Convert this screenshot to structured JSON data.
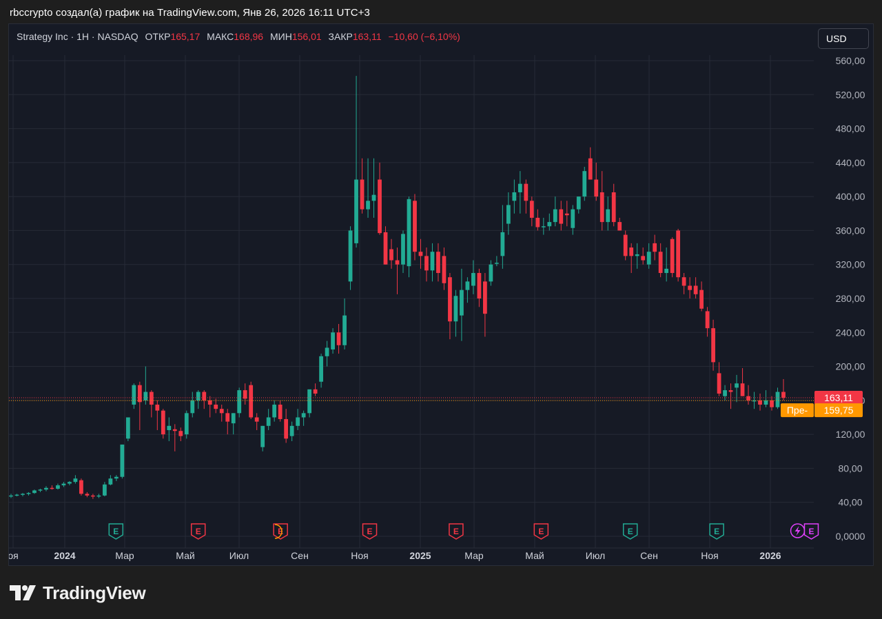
{
  "caption": "rbccrypto создал(а) график на TradingView.com, Янв 26, 2026 16:11 UTC+3",
  "legend": {
    "symbol": "Strategy Inc · 1H · NASDAQ",
    "open_label": "ОТКР",
    "open_value": "165,17",
    "high_label": "МАКС",
    "high_value": "168,96",
    "low_label": "МИН",
    "low_value": "156,01",
    "close_label": "ЗАКР",
    "close_value": "163,11",
    "change": "−10,60 (−6,10%)"
  },
  "currency_button": "USD",
  "last_price_label": "163,11",
  "premarket_tag": "Пре-",
  "premarket_price": "159,75",
  "logo_text": "TradingView",
  "colors": {
    "up": "#22ab94",
    "down": "#f23645",
    "premarket": "#ff9800",
    "background": "#161a25"
  },
  "chart_data": {
    "type": "candlestick",
    "ylim": [
      0,
      560
    ],
    "y_ticks": [
      "0,0000",
      "40,00",
      "80,00",
      "120,00",
      "160,00",
      "200,00",
      "240,00",
      "280,00",
      "320,00",
      "360,00",
      "400,00",
      "440,00",
      "480,00",
      "520,00",
      "560,00"
    ],
    "x_ticks": [
      {
        "label": "оя",
        "date": "2023-11",
        "bold": false
      },
      {
        "label": "2024",
        "date": "2024-01",
        "bold": true
      },
      {
        "label": "Мар",
        "date": "2024-03",
        "bold": false
      },
      {
        "label": "Май",
        "date": "2024-05",
        "bold": false
      },
      {
        "label": "Июл",
        "date": "2024-07",
        "bold": false
      },
      {
        "label": "Сен",
        "date": "2024-09",
        "bold": false
      },
      {
        "label": "Ноя",
        "date": "2024-11",
        "bold": false
      },
      {
        "label": "2025",
        "date": "2025-01",
        "bold": true
      },
      {
        "label": "Мар",
        "date": "2025-03",
        "bold": false
      },
      {
        "label": "Май",
        "date": "2025-05",
        "bold": false
      },
      {
        "label": "Июл",
        "date": "2025-07",
        "bold": false
      },
      {
        "label": "Сен",
        "date": "2025-09",
        "bold": false
      },
      {
        "label": "Ноя",
        "date": "2025-11",
        "bold": false
      },
      {
        "label": "2026",
        "date": "2026-01",
        "bold": true
      }
    ],
    "candles": [
      [
        47,
        50,
        45,
        48
      ],
      [
        48,
        50,
        47,
        49
      ],
      [
        49,
        51,
        47,
        50
      ],
      [
        50,
        52,
        48,
        51
      ],
      [
        51,
        55,
        50,
        54
      ],
      [
        54,
        56,
        52,
        55
      ],
      [
        55,
        59,
        53,
        57
      ],
      [
        57,
        60,
        55,
        56
      ],
      [
        56,
        62,
        55,
        60
      ],
      [
        60,
        64,
        58,
        62
      ],
      [
        62,
        65,
        60,
        64
      ],
      [
        64,
        72,
        62,
        68
      ],
      [
        66,
        68,
        48,
        50
      ],
      [
        50,
        52,
        46,
        48
      ],
      [
        48,
        50,
        44,
        47
      ],
      [
        47,
        50,
        45,
        48
      ],
      [
        48,
        64,
        47,
        61
      ],
      [
        61,
        72,
        60,
        68
      ],
      [
        68,
        72,
        65,
        70
      ],
      [
        70,
        108,
        68,
        108
      ],
      [
        115,
        140,
        112,
        140
      ],
      [
        155,
        180,
        150,
        178
      ],
      [
        178,
        182,
        125,
        158
      ],
      [
        160,
        200,
        155,
        170
      ],
      [
        170,
        172,
        140,
        155
      ],
      [
        155,
        160,
        125,
        148
      ],
      [
        148,
        150,
        115,
        120
      ],
      [
        125,
        140,
        112,
        130
      ],
      [
        126,
        132,
        100,
        124
      ],
      [
        124,
        128,
        112,
        118
      ],
      [
        120,
        148,
        115,
        145
      ],
      [
        145,
        170,
        140,
        160
      ],
      [
        160,
        172,
        150,
        170
      ],
      [
        170,
        172,
        150,
        160
      ],
      [
        160,
        165,
        140,
        155
      ],
      [
        155,
        162,
        145,
        150
      ],
      [
        150,
        155,
        135,
        145
      ],
      [
        145,
        150,
        120,
        135
      ],
      [
        133,
        145,
        120,
        145
      ],
      [
        145,
        175,
        140,
        172
      ],
      [
        172,
        180,
        155,
        162
      ],
      [
        178,
        182,
        138,
        140
      ],
      [
        140,
        145,
        125,
        135
      ],
      [
        105,
        130,
        100,
        130
      ],
      [
        130,
        150,
        125,
        140
      ],
      [
        140,
        160,
        135,
        155
      ],
      [
        155,
        160,
        135,
        138
      ],
      [
        138,
        150,
        110,
        115
      ],
      [
        118,
        135,
        112,
        130
      ],
      [
        130,
        150,
        125,
        140
      ],
      [
        140,
        148,
        130,
        145
      ],
      [
        145,
        172,
        140,
        173
      ],
      [
        173,
        180,
        165,
        168
      ],
      [
        182,
        215,
        175,
        212
      ],
      [
        212,
        230,
        200,
        222
      ],
      [
        220,
        245,
        215,
        240
      ],
      [
        240,
        250,
        215,
        225
      ],
      [
        225,
        280,
        220,
        260
      ],
      [
        300,
        365,
        290,
        360
      ],
      [
        345,
        542,
        340,
        420
      ],
      [
        420,
        445,
        380,
        385
      ],
      [
        385,
        445,
        375,
        395
      ],
      [
        395,
        445,
        375,
        402
      ],
      [
        420,
        440,
        355,
        357
      ],
      [
        358,
        365,
        320,
        320
      ],
      [
        338,
        350,
        315,
        325
      ],
      [
        325,
        340,
        285,
        320
      ],
      [
        320,
        360,
        310,
        356
      ],
      [
        318,
        400,
        305,
        397
      ],
      [
        395,
        403,
        325,
        335
      ],
      [
        335,
        350,
        315,
        330
      ],
      [
        330,
        340,
        300,
        313
      ],
      [
        313,
        345,
        300,
        335
      ],
      [
        335,
        345,
        300,
        310
      ],
      [
        330,
        340,
        290,
        298
      ],
      [
        305,
        310,
        232,
        253
      ],
      [
        253,
        290,
        235,
        283
      ],
      [
        260,
        315,
        230,
        290
      ],
      [
        290,
        305,
        275,
        300
      ],
      [
        295,
        325,
        285,
        310
      ],
      [
        310,
        315,
        270,
        280
      ],
      [
        300,
        310,
        235,
        262
      ],
      [
        300,
        325,
        295,
        320
      ],
      [
        321,
        330,
        318,
        322
      ],
      [
        330,
        390,
        315,
        358
      ],
      [
        368,
        405,
        355,
        390
      ],
      [
        395,
        420,
        380,
        405
      ],
      [
        405,
        430,
        380,
        415
      ],
      [
        415,
        420,
        380,
        395
      ],
      [
        395,
        400,
        365,
        375
      ],
      [
        375,
        385,
        360,
        364
      ],
      [
        364,
        375,
        355,
        365
      ],
      [
        365,
        380,
        360,
        370
      ],
      [
        370,
        400,
        365,
        385
      ],
      [
        385,
        395,
        360,
        368
      ],
      [
        380,
        395,
        365,
        378
      ],
      [
        363,
        390,
        355,
        385
      ],
      [
        385,
        400,
        380,
        400
      ],
      [
        400,
        435,
        395,
        430
      ],
      [
        445,
        458,
        425,
        420
      ],
      [
        420,
        440,
        395,
        400
      ],
      [
        405,
        430,
        360,
        370
      ],
      [
        370,
        400,
        360,
        385
      ],
      [
        405,
        415,
        365,
        370
      ],
      [
        370,
        375,
        360,
        360
      ],
      [
        355,
        360,
        325,
        330
      ],
      [
        340,
        345,
        310,
        330
      ],
      [
        330,
        345,
        315,
        332
      ],
      [
        330,
        340,
        320,
        325
      ],
      [
        320,
        345,
        315,
        335
      ],
      [
        345,
        355,
        325,
        335
      ],
      [
        335,
        345,
        305,
        310
      ],
      [
        310,
        340,
        300,
        315
      ],
      [
        350,
        352,
        305,
        310
      ],
      [
        360,
        362,
        300,
        305
      ],
      [
        305,
        310,
        285,
        295
      ],
      [
        295,
        305,
        280,
        290
      ],
      [
        295,
        305,
        280,
        285
      ],
      [
        290,
        300,
        265,
        268
      ],
      [
        265,
        270,
        235,
        245
      ],
      [
        245,
        255,
        195,
        205
      ],
      [
        192,
        205,
        165,
        168
      ],
      [
        165,
        178,
        160,
        172
      ],
      [
        172,
        180,
        150,
        170
      ],
      [
        175,
        190,
        158,
        180
      ],
      [
        180,
        198,
        165,
        165
      ],
      [
        165,
        178,
        155,
        160
      ],
      [
        160,
        170,
        150,
        160
      ],
      [
        160,
        168,
        148,
        155
      ],
      [
        155,
        172,
        152,
        160
      ],
      [
        160,
        165,
        148,
        152
      ],
      [
        152,
        175,
        150,
        170
      ],
      [
        170,
        185,
        160,
        163
      ]
    ],
    "last_price": 163.11,
    "premarket_price": 159.75,
    "events": [
      {
        "kind": "E",
        "style": "green",
        "pos": 7.5
      },
      {
        "kind": "E",
        "style": "red",
        "pos": 13.5
      },
      {
        "kind": "E",
        "style": "red",
        "pos": 19.5
      },
      {
        "kind": "E",
        "style": "red",
        "pos": 26.0
      },
      {
        "kind": "E",
        "style": "red",
        "pos": 32.3
      },
      {
        "kind": "E",
        "style": "red",
        "pos": 38.5
      },
      {
        "kind": "E",
        "style": "green",
        "pos": 45.0
      },
      {
        "kind": "E",
        "style": "green",
        "pos": 51.3
      },
      {
        "kind": "flash",
        "style": "purple",
        "pos": 57.2
      },
      {
        "kind": "E",
        "style": "purple",
        "pos": 58.2
      }
    ]
  }
}
